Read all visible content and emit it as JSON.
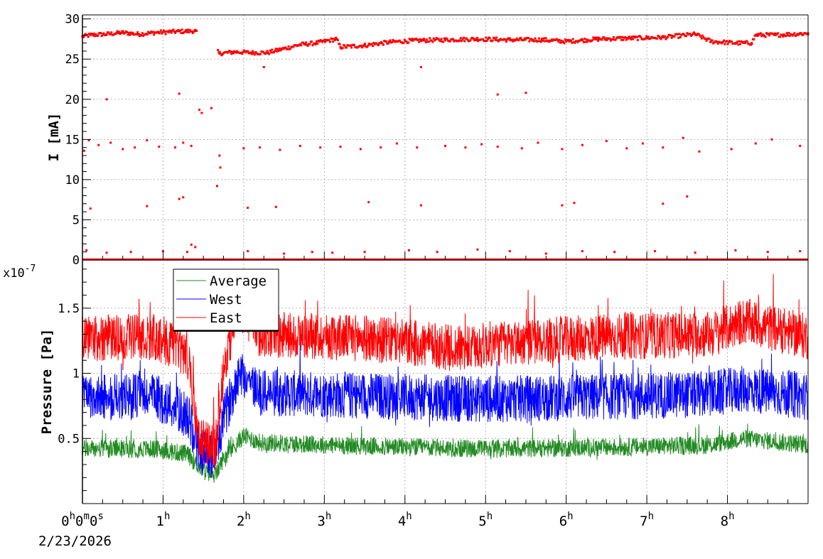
{
  "chart_data": [
    {
      "type": "scatter",
      "panel": "top",
      "ylabel": "I [mA]",
      "xlim_hours": [
        0,
        9
      ],
      "ylim": [
        0,
        30.5
      ],
      "yticks": [
        0,
        5,
        10,
        15,
        20,
        25,
        30
      ],
      "ytick_labels": [
        "0",
        "5",
        "10",
        "15",
        "20",
        "25",
        "30"
      ],
      "grid": true,
      "series": [
        {
          "color": "#ff0000",
          "marker": "square",
          "main_band": [
            {
              "x": 0.0,
              "y": 27.8
            },
            {
              "x": 0.1,
              "y": 28.0
            },
            {
              "x": 0.3,
              "y": 28.1
            },
            {
              "x": 0.5,
              "y": 28.3
            },
            {
              "x": 0.7,
              "y": 28.1
            },
            {
              "x": 0.9,
              "y": 28.3
            },
            {
              "x": 1.1,
              "y": 28.4
            },
            {
              "x": 1.4,
              "y": 28.5
            },
            {
              "x": 1.7,
              "y": 25.7
            },
            {
              "x": 1.9,
              "y": 25.9
            },
            {
              "x": 2.1,
              "y": 25.8
            },
            {
              "x": 2.3,
              "y": 25.8
            },
            {
              "x": 2.5,
              "y": 26.3
            },
            {
              "x": 2.7,
              "y": 26.8
            },
            {
              "x": 2.9,
              "y": 27.0
            },
            {
              "x": 3.15,
              "y": 27.5
            },
            {
              "x": 3.2,
              "y": 26.5
            },
            {
              "x": 3.5,
              "y": 26.7
            },
            {
              "x": 3.8,
              "y": 27.1
            },
            {
              "x": 4.1,
              "y": 27.3
            },
            {
              "x": 4.5,
              "y": 27.4
            },
            {
              "x": 4.9,
              "y": 27.5
            },
            {
              "x": 5.3,
              "y": 27.4
            },
            {
              "x": 5.7,
              "y": 27.4
            },
            {
              "x": 6.0,
              "y": 27.2
            },
            {
              "x": 6.4,
              "y": 27.5
            },
            {
              "x": 6.8,
              "y": 27.6
            },
            {
              "x": 7.2,
              "y": 27.7
            },
            {
              "x": 7.6,
              "y": 28.1
            },
            {
              "x": 7.8,
              "y": 27.2
            },
            {
              "x": 8.1,
              "y": 27.0
            },
            {
              "x": 8.3,
              "y": 27.0
            },
            {
              "x": 8.35,
              "y": 28.0
            },
            {
              "x": 8.6,
              "y": 28.0
            },
            {
              "x": 9.0,
              "y": 28.2
            }
          ],
          "transition": [
            {
              "x": 1.45,
              "y": 18.7
            },
            {
              "x": 1.48,
              "y": 18.3
            },
            {
              "x": 1.6,
              "y": 18.9
            },
            {
              "x": 1.67,
              "y": 9.2
            },
            {
              "x": 1.7,
              "y": 13.0
            },
            {
              "x": 1.71,
              "y": 11.5
            }
          ],
          "outliers": [
            {
              "x": 0.02,
              "y": 13.6
            },
            {
              "x": 0.08,
              "y": 14.9
            },
            {
              "x": 0.2,
              "y": 14.3
            },
            {
              "x": 0.35,
              "y": 14.6
            },
            {
              "x": 0.5,
              "y": 13.8
            },
            {
              "x": 0.65,
              "y": 14.0
            },
            {
              "x": 0.8,
              "y": 14.9
            },
            {
              "x": 0.95,
              "y": 14.1
            },
            {
              "x": 1.15,
              "y": 14.0
            },
            {
              "x": 1.25,
              "y": 14.6
            },
            {
              "x": 1.35,
              "y": 14.2
            },
            {
              "x": 2.0,
              "y": 13.9
            },
            {
              "x": 2.2,
              "y": 14.0
            },
            {
              "x": 2.45,
              "y": 13.7
            },
            {
              "x": 2.7,
              "y": 14.2
            },
            {
              "x": 2.95,
              "y": 14.0
            },
            {
              "x": 3.2,
              "y": 14.1
            },
            {
              "x": 3.45,
              "y": 13.8
            },
            {
              "x": 3.7,
              "y": 14.0
            },
            {
              "x": 3.9,
              "y": 14.5
            },
            {
              "x": 4.15,
              "y": 14.0
            },
            {
              "x": 4.5,
              "y": 14.2
            },
            {
              "x": 4.75,
              "y": 14.0
            },
            {
              "x": 4.95,
              "y": 14.4
            },
            {
              "x": 5.15,
              "y": 14.1
            },
            {
              "x": 5.45,
              "y": 13.9
            },
            {
              "x": 5.65,
              "y": 14.6
            },
            {
              "x": 5.95,
              "y": 13.8
            },
            {
              "x": 6.2,
              "y": 14.3
            },
            {
              "x": 6.5,
              "y": 14.8
            },
            {
              "x": 6.75,
              "y": 13.9
            },
            {
              "x": 6.95,
              "y": 14.5
            },
            {
              "x": 7.2,
              "y": 14.0
            },
            {
              "x": 7.45,
              "y": 15.2
            },
            {
              "x": 7.65,
              "y": 13.5
            },
            {
              "x": 8.05,
              "y": 13.8
            },
            {
              "x": 8.35,
              "y": 14.5
            },
            {
              "x": 8.55,
              "y": 15.0
            },
            {
              "x": 8.9,
              "y": 14.2
            },
            {
              "x": 0.3,
              "y": 20.0
            },
            {
              "x": 1.2,
              "y": 20.7
            },
            {
              "x": 5.15,
              "y": 20.6
            },
            {
              "x": 5.5,
              "y": 20.8
            },
            {
              "x": 2.25,
              "y": 24.0
            },
            {
              "x": 4.2,
              "y": 24.0
            },
            {
              "x": 0.1,
              "y": 6.4
            },
            {
              "x": 0.8,
              "y": 6.7
            },
            {
              "x": 1.2,
              "y": 7.6
            },
            {
              "x": 1.25,
              "y": 7.8
            },
            {
              "x": 2.05,
              "y": 6.5
            },
            {
              "x": 2.4,
              "y": 6.6
            },
            {
              "x": 3.55,
              "y": 7.2
            },
            {
              "x": 4.2,
              "y": 6.8
            },
            {
              "x": 5.95,
              "y": 6.8
            },
            {
              "x": 6.1,
              "y": 7.1
            },
            {
              "x": 7.2,
              "y": 7.0
            },
            {
              "x": 7.5,
              "y": 7.9
            },
            {
              "x": 0.05,
              "y": 1.2
            },
            {
              "x": 0.3,
              "y": 0.9
            },
            {
              "x": 0.6,
              "y": 1.0
            },
            {
              "x": 1.0,
              "y": 1.1
            },
            {
              "x": 1.3,
              "y": 1.0
            },
            {
              "x": 1.35,
              "y": 1.9
            },
            {
              "x": 1.4,
              "y": 1.6
            },
            {
              "x": 2.05,
              "y": 1.1
            },
            {
              "x": 2.5,
              "y": 0.8
            },
            {
              "x": 2.85,
              "y": 1.0
            },
            {
              "x": 3.1,
              "y": 0.9
            },
            {
              "x": 3.5,
              "y": 1.0
            },
            {
              "x": 4.05,
              "y": 1.2
            },
            {
              "x": 4.4,
              "y": 1.0
            },
            {
              "x": 4.9,
              "y": 1.3
            },
            {
              "x": 5.3,
              "y": 1.1
            },
            {
              "x": 5.75,
              "y": 0.8
            },
            {
              "x": 6.2,
              "y": 1.1
            },
            {
              "x": 6.6,
              "y": 1.0
            },
            {
              "x": 7.1,
              "y": 1.1
            },
            {
              "x": 7.6,
              "y": 0.9
            },
            {
              "x": 8.1,
              "y": 1.2
            },
            {
              "x": 8.5,
              "y": 1.0
            },
            {
              "x": 8.9,
              "y": 1.1
            }
          ],
          "baseline": {
            "y": 0.05,
            "x_from": 0.0,
            "x_to": 9.0
          }
        }
      ]
    },
    {
      "type": "line",
      "panel": "bottom",
      "ylabel": "Pressure [Pa]",
      "exponent_label": "x10",
      "exponent": "-7",
      "xlim_hours": [
        0,
        9
      ],
      "ylim": [
        0.0,
        1.87
      ],
      "yticks": [
        0.5,
        1.0,
        1.5
      ],
      "ytick_labels": [
        "0.5",
        "1",
        "1.5"
      ],
      "grid": true,
      "legend": "top-left",
      "series": [
        {
          "name": "Average",
          "color": "#228b22",
          "noise": 0.07,
          "base": [
            [
              0.0,
              0.42
            ],
            [
              0.9,
              0.42
            ],
            [
              1.3,
              0.38
            ],
            [
              1.5,
              0.25
            ],
            [
              1.65,
              0.22
            ],
            [
              1.75,
              0.35
            ],
            [
              2.0,
              0.52
            ],
            [
              2.2,
              0.47
            ],
            [
              3.5,
              0.44
            ],
            [
              5.0,
              0.42
            ],
            [
              6.5,
              0.43
            ],
            [
              7.8,
              0.45
            ],
            [
              8.2,
              0.5
            ],
            [
              9.0,
              0.45
            ]
          ]
        },
        {
          "name": "West",
          "color": "#0000ff",
          "noise": 0.18,
          "base": [
            [
              0.0,
              0.82
            ],
            [
              0.9,
              0.82
            ],
            [
              1.3,
              0.68
            ],
            [
              1.45,
              0.4
            ],
            [
              1.65,
              0.36
            ],
            [
              1.75,
              0.65
            ],
            [
              1.95,
              1.02
            ],
            [
              2.2,
              0.85
            ],
            [
              3.5,
              0.83
            ],
            [
              5.0,
              0.8
            ],
            [
              6.5,
              0.82
            ],
            [
              7.8,
              0.84
            ],
            [
              8.2,
              0.88
            ],
            [
              9.0,
              0.82
            ]
          ]
        },
        {
          "name": "East",
          "color": "#ff0000",
          "noise": 0.18,
          "base": [
            [
              0.0,
              1.27
            ],
            [
              0.9,
              1.28
            ],
            [
              1.3,
              1.15
            ],
            [
              1.45,
              0.48
            ],
            [
              1.65,
              0.42
            ],
            [
              1.75,
              1.05
            ],
            [
              1.95,
              1.52
            ],
            [
              2.2,
              1.3
            ],
            [
              3.5,
              1.27
            ],
            [
              4.8,
              1.18
            ],
            [
              5.0,
              1.22
            ],
            [
              6.5,
              1.28
            ],
            [
              7.8,
              1.3
            ],
            [
              8.2,
              1.4
            ],
            [
              9.0,
              1.28
            ]
          ]
        }
      ]
    }
  ],
  "x_axis": {
    "ticks": [
      {
        "h": 0,
        "parts": [
          "0",
          "h",
          "0",
          "m",
          "0",
          "s"
        ]
      },
      {
        "h": 1,
        "parts": [
          "1",
          "h"
        ]
      },
      {
        "h": 2,
        "parts": [
          "2",
          "h"
        ]
      },
      {
        "h": 3,
        "parts": [
          "3",
          "h"
        ]
      },
      {
        "h": 4,
        "parts": [
          "4",
          "h"
        ]
      },
      {
        "h": 5,
        "parts": [
          "5",
          "h"
        ]
      },
      {
        "h": 6,
        "parts": [
          "6",
          "h"
        ]
      },
      {
        "h": 7,
        "parts": [
          "7",
          "h"
        ]
      },
      {
        "h": 8,
        "parts": [
          "8",
          "h"
        ]
      }
    ],
    "date": "2/23/2026"
  }
}
